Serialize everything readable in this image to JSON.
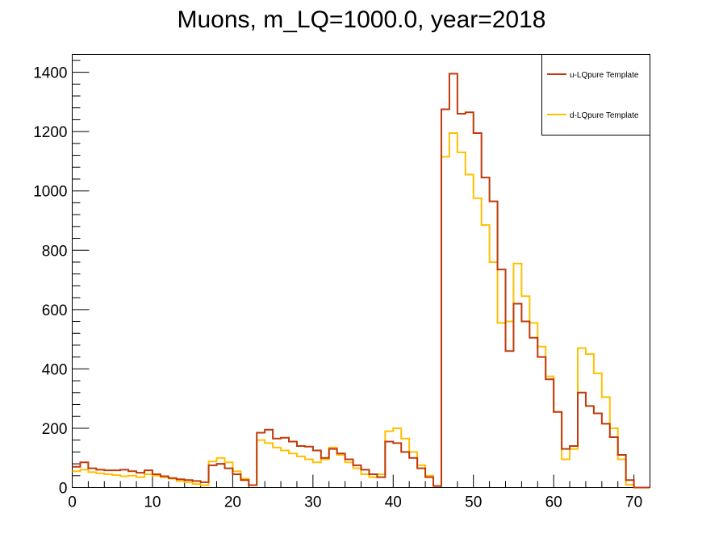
{
  "chart_data": {
    "type": "step",
    "title": "Muons, m_LQ=1000.0, year=2018",
    "xlabel": "",
    "ylabel": "",
    "xlim": [
      0,
      72
    ],
    "ylim": [
      0,
      1460
    ],
    "xticks": [
      "0",
      "10",
      "20",
      "30",
      "40",
      "50",
      "60",
      "70"
    ],
    "yticks": [
      "0",
      "200",
      "400",
      "600",
      "800",
      "1000",
      "1200",
      "1400"
    ],
    "grid": false,
    "legend_position": "top-right",
    "series": [
      {
        "name": "u-LQpure Template",
        "color": "#c0390b",
        "values": [
          70,
          85,
          65,
          60,
          58,
          58,
          60,
          55,
          50,
          58,
          45,
          38,
          32,
          28,
          25,
          22,
          18,
          75,
          80,
          65,
          45,
          25,
          8,
          185,
          195,
          165,
          168,
          155,
          140,
          138,
          125,
          100,
          130,
          115,
          95,
          75,
          60,
          45,
          35,
          155,
          150,
          120,
          100,
          65,
          35,
          5,
          1275,
          1395,
          1260,
          1265,
          1195,
          1045,
          965,
          735,
          460,
          620,
          560,
          505,
          440,
          365,
          255,
          130,
          140,
          320,
          275,
          250,
          215,
          170,
          110,
          25,
          0,
          0
        ]
      },
      {
        "name": "d-LQpure Template",
        "color": "#ffc000",
        "values": [
          55,
          60,
          52,
          48,
          45,
          42,
          38,
          40,
          35,
          45,
          40,
          35,
          30,
          22,
          18,
          12,
          8,
          88,
          100,
          85,
          55,
          30,
          8,
          160,
          150,
          135,
          125,
          115,
          105,
          95,
          85,
          95,
          135,
          110,
          85,
          65,
          45,
          35,
          45,
          190,
          200,
          165,
          120,
          75,
          40,
          5,
          1115,
          1195,
          1130,
          1055,
          975,
          885,
          760,
          555,
          560,
          755,
          645,
          555,
          475,
          375,
          255,
          95,
          130,
          470,
          450,
          385,
          305,
          200,
          95,
          10,
          0,
          0
        ]
      }
    ]
  }
}
